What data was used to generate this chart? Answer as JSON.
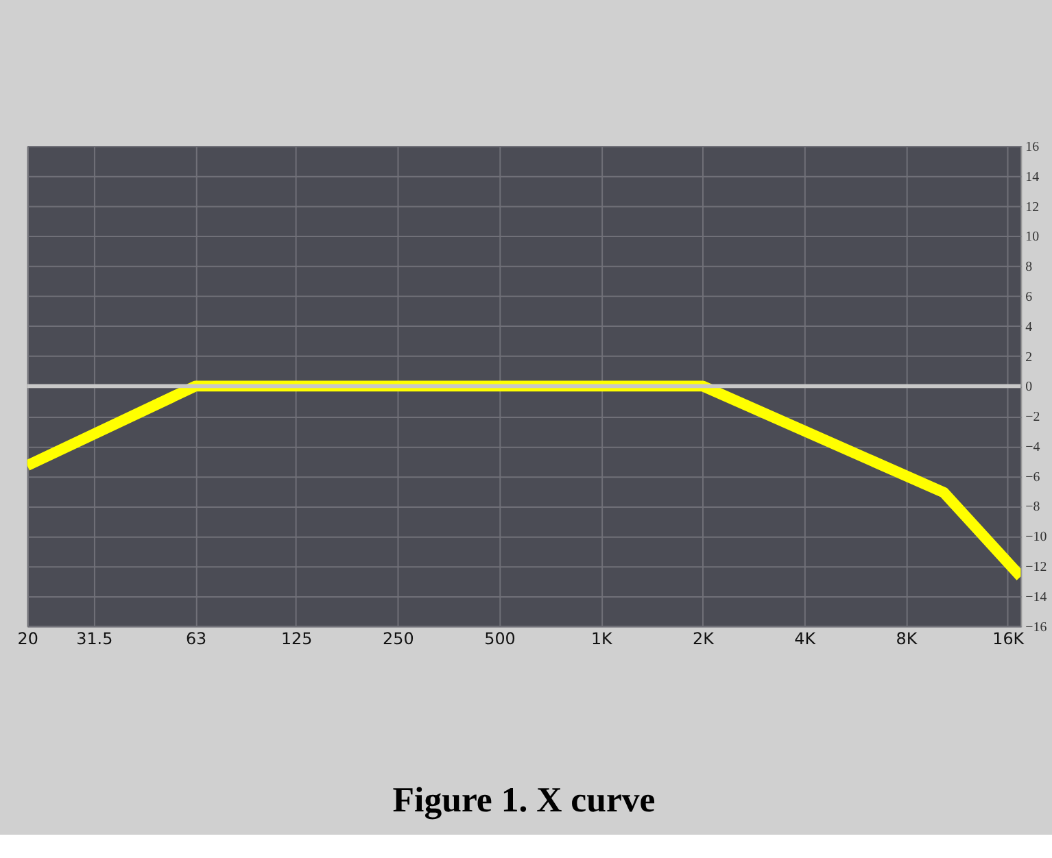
{
  "chart_data": {
    "type": "line",
    "title": "Figure 1. X curve",
    "x": [
      20,
      63,
      2000,
      10370,
      17500
    ],
    "series": [
      {
        "color": "#ffff00",
        "values": [
          -5.3,
          0,
          0,
          -7.1,
          -12.7
        ]
      }
    ],
    "xlim": [
      20,
      17500
    ],
    "xticks": [
      20,
      31.5,
      63,
      125,
      250,
      500,
      {
        "value": 1000,
        "label": "1K"
      },
      {
        "value": 2000,
        "label": "2K"
      },
      {
        "value": 4000,
        "label": "4K"
      },
      {
        "value": 8000,
        "label": "8K"
      },
      {
        "value": 16000,
        "label": "16K"
      }
    ],
    "ylim": [
      -16,
      16
    ],
    "yticks": [
      -16,
      -14,
      -12,
      -10,
      -8,
      -6,
      -4,
      -2,
      0,
      2,
      4,
      6,
      8,
      10,
      12,
      14,
      16
    ],
    "log": "x",
    "grid": true,
    "marker": "none",
    "line_style": "solid",
    "ref_lines": [
      {
        "axis": "y",
        "value": 0,
        "color": "#c8c8c8"
      }
    ]
  }
}
